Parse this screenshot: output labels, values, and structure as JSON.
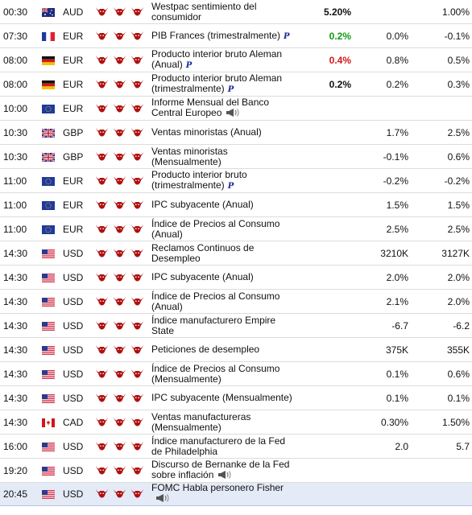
{
  "colors": {
    "positive": "#129a12",
    "negative": "#d01818",
    "bull": "#b01010",
    "highlight_row": "#e4ebf7"
  },
  "rows": [
    {
      "time": "00:30",
      "flag": "flag-australia",
      "currency": "AUD",
      "event": "Westpac sentimiento del consumidor",
      "prelim": false,
      "speech": false,
      "actual": "5.20%",
      "actual_color": "black",
      "forecast": "",
      "previous": "1.00%"
    },
    {
      "time": "07:30",
      "flag": "flag-france",
      "currency": "EUR",
      "event": "PIB Frances (trimestralmente)",
      "prelim": true,
      "speech": false,
      "actual": "0.2%",
      "actual_color": "green",
      "forecast": "0.0%",
      "previous": "-0.1%"
    },
    {
      "time": "08:00",
      "flag": "flag-germany",
      "currency": "EUR",
      "event": "Producto interior bruto Aleman (Anual)",
      "prelim": true,
      "speech": false,
      "actual": "0.4%",
      "actual_color": "red",
      "forecast": "0.8%",
      "previous": "0.5%"
    },
    {
      "time": "08:00",
      "flag": "flag-germany",
      "currency": "EUR",
      "event": "Producto interior bruto Aleman (trimestralmente)",
      "prelim": true,
      "speech": false,
      "actual": "0.2%",
      "actual_color": "black",
      "forecast": "0.2%",
      "previous": "0.3%"
    },
    {
      "time": "10:00",
      "flag": "flag-eu",
      "currency": "EUR",
      "event": "Informe Mensual del Banco Central Europeo",
      "prelim": false,
      "speech": true,
      "actual": "",
      "actual_color": "black",
      "forecast": "",
      "previous": ""
    },
    {
      "time": "10:30",
      "flag": "flag-uk",
      "currency": "GBP",
      "event": "Ventas minoristas (Anual)",
      "prelim": false,
      "speech": false,
      "actual": "",
      "actual_color": "black",
      "forecast": "1.7%",
      "previous": "2.5%"
    },
    {
      "time": "10:30",
      "flag": "flag-uk",
      "currency": "GBP",
      "event": "Ventas minoristas (Mensualmente)",
      "prelim": false,
      "speech": false,
      "actual": "",
      "actual_color": "black",
      "forecast": "-0.1%",
      "previous": "0.6%"
    },
    {
      "time": "11:00",
      "flag": "flag-eu",
      "currency": "EUR",
      "event": "Producto interior bruto (trimestralmente)",
      "prelim": true,
      "speech": false,
      "actual": "",
      "actual_color": "black",
      "forecast": "-0.2%",
      "previous": "-0.2%"
    },
    {
      "time": "11:00",
      "flag": "flag-eu",
      "currency": "EUR",
      "event": "IPC subyacente (Anual)",
      "prelim": false,
      "speech": false,
      "actual": "",
      "actual_color": "black",
      "forecast": "1.5%",
      "previous": "1.5%"
    },
    {
      "time": "11:00",
      "flag": "flag-eu",
      "currency": "EUR",
      "event": "Índice de Precios al Consumo (Anual)",
      "prelim": false,
      "speech": false,
      "actual": "",
      "actual_color": "black",
      "forecast": "2.5%",
      "previous": "2.5%"
    },
    {
      "time": "14:30",
      "flag": "flag-usa",
      "currency": "USD",
      "event": "Reclamos Continuos de Desempleo",
      "prelim": false,
      "speech": false,
      "actual": "",
      "actual_color": "black",
      "forecast": "3210K",
      "previous": "3127K"
    },
    {
      "time": "14:30",
      "flag": "flag-usa",
      "currency": "USD",
      "event": "IPC subyacente (Anual)",
      "prelim": false,
      "speech": false,
      "actual": "",
      "actual_color": "black",
      "forecast": "2.0%",
      "previous": "2.0%"
    },
    {
      "time": "14:30",
      "flag": "flag-usa",
      "currency": "USD",
      "event": "Índice de Precios al Consumo (Anual)",
      "prelim": false,
      "speech": false,
      "actual": "",
      "actual_color": "black",
      "forecast": "2.1%",
      "previous": "2.0%"
    },
    {
      "time": "14:30",
      "flag": "flag-usa",
      "currency": "USD",
      "event": "Índice manufacturero Empire State",
      "prelim": false,
      "speech": false,
      "actual": "",
      "actual_color": "black",
      "forecast": "-6.7",
      "previous": "-6.2"
    },
    {
      "time": "14:30",
      "flag": "flag-usa",
      "currency": "USD",
      "event": "Peticiones de desempleo",
      "prelim": false,
      "speech": false,
      "actual": "",
      "actual_color": "black",
      "forecast": "375K",
      "previous": "355K"
    },
    {
      "time": "14:30",
      "flag": "flag-usa",
      "currency": "USD",
      "event": "Índice de Precios al Consumo (Mensualmente)",
      "prelim": false,
      "speech": false,
      "actual": "",
      "actual_color": "black",
      "forecast": "0.1%",
      "previous": "0.6%"
    },
    {
      "time": "14:30",
      "flag": "flag-usa",
      "currency": "USD",
      "event": "IPC subyacente (Mensualmente)",
      "prelim": false,
      "speech": false,
      "actual": "",
      "actual_color": "black",
      "forecast": "0.1%",
      "previous": "0.1%"
    },
    {
      "time": "14:30",
      "flag": "flag-canada",
      "currency": "CAD",
      "event": "Ventas manufactureras (Mensualmente)",
      "prelim": false,
      "speech": false,
      "actual": "",
      "actual_color": "black",
      "forecast": "0.30%",
      "previous": "1.50%"
    },
    {
      "time": "16:00",
      "flag": "flag-usa",
      "currency": "USD",
      "event": "Índice manufacturero de la Fed de Philadelphia",
      "prelim": false,
      "speech": false,
      "actual": "",
      "actual_color": "black",
      "forecast": "2.0",
      "previous": "5.7"
    },
    {
      "time": "19:20",
      "flag": "flag-usa",
      "currency": "USD",
      "event": "Discurso de Bernanke de la Fed sobre inflación",
      "prelim": false,
      "speech": true,
      "actual": "",
      "actual_color": "black",
      "forecast": "",
      "previous": ""
    },
    {
      "time": "20:45",
      "flag": "flag-usa",
      "currency": "USD",
      "event": "FOMC Habla personero Fisher",
      "prelim": false,
      "speech": true,
      "actual": "",
      "actual_color": "black",
      "forecast": "",
      "previous": ""
    }
  ],
  "prelim_mark": "P",
  "importance_icon": "bull-icon"
}
